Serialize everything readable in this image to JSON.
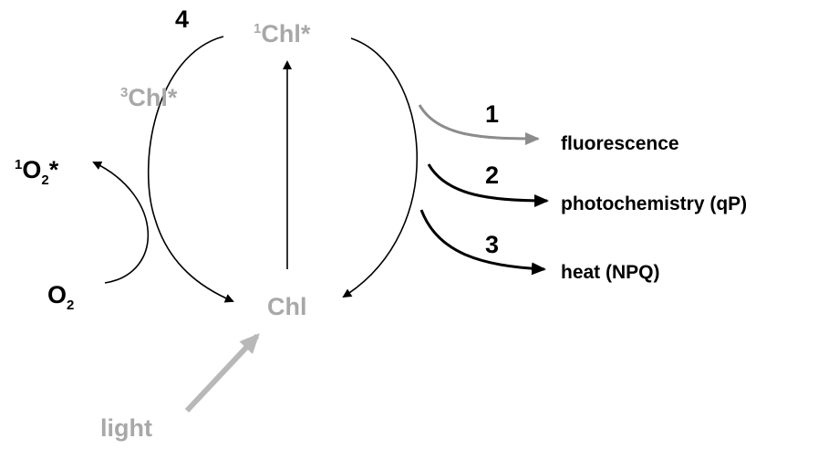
{
  "nodes": [
    {
      "sup": "1",
      "label": "Chl*"
    },
    {
      "sup": "3",
      "label": "Chl*"
    },
    {
      "label": "Chl"
    }
  ],
  "species": [
    {
      "sup": "1",
      "label": "O",
      "sub": "2",
      "suffix": "*"
    },
    {
      "label": "O",
      "sub": "2"
    }
  ],
  "pathways": [
    {
      "number": "1",
      "label": "fluorescence"
    },
    {
      "number": "2",
      "label": "photochemistry (qP)"
    },
    {
      "number": "3",
      "label": "heat (NPQ)"
    }
  ],
  "isc_number": "4",
  "input": "light"
}
